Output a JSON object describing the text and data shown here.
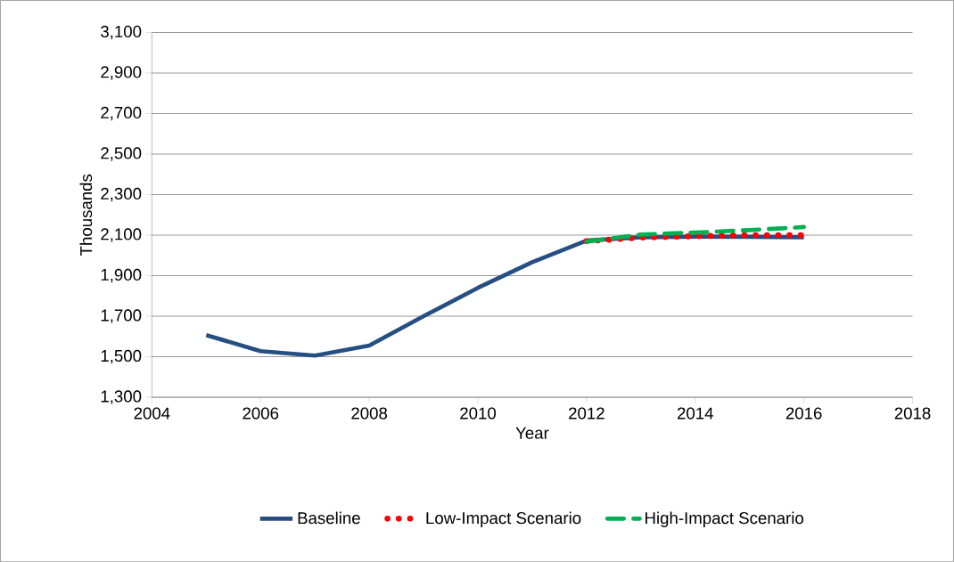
{
  "chart_data": {
    "type": "line",
    "xlabel": "Year",
    "ylabel": "Thousands",
    "xlim": [
      2004,
      2018
    ],
    "xticks": [
      2004,
      2006,
      2008,
      2010,
      2012,
      2014,
      2016,
      2018
    ],
    "ylim": [
      1300,
      3100
    ],
    "yticks": [
      {
        "value": 1300,
        "label": "1,300"
      },
      {
        "value": 1500,
        "label": "1,500"
      },
      {
        "value": 1700,
        "label": "1,700"
      },
      {
        "value": 1900,
        "label": "1,900"
      },
      {
        "value": 2100,
        "label": "2,100"
      },
      {
        "value": 2300,
        "label": "2,300"
      },
      {
        "value": 2500,
        "label": "2,500"
      },
      {
        "value": 2700,
        "label": "2,700"
      },
      {
        "value": 2900,
        "label": "2,900"
      },
      {
        "value": 3100,
        "label": "3,100"
      }
    ],
    "grid": "y",
    "legend": "bottom",
    "marker": "none",
    "series": [
      {
        "name": "Baseline",
        "color": "#254e82",
        "line_style": "solid",
        "x": [
          2005,
          2006,
          2007,
          2008,
          2009,
          2010,
          2011,
          2012,
          2013,
          2014,
          2015,
          2016
        ],
        "values": [
          1607,
          1528,
          1506,
          1555,
          1700,
          1840,
          1967,
          2073,
          2090,
          2093,
          2092,
          2090
        ]
      },
      {
        "name": "Low-Impact Scenario",
        "color": "#ff0000",
        "line_style": "dotted",
        "x": [
          2012,
          2013,
          2014,
          2015,
          2016
        ],
        "values": [
          2070,
          2088,
          2095,
          2100,
          2100
        ]
      },
      {
        "name": "High-Impact Scenario",
        "color": "#00b050",
        "line_style": "dashed",
        "x": [
          2012,
          2013,
          2014,
          2015,
          2016
        ],
        "values": [
          2068,
          2103,
          2113,
          2125,
          2140
        ]
      }
    ]
  }
}
